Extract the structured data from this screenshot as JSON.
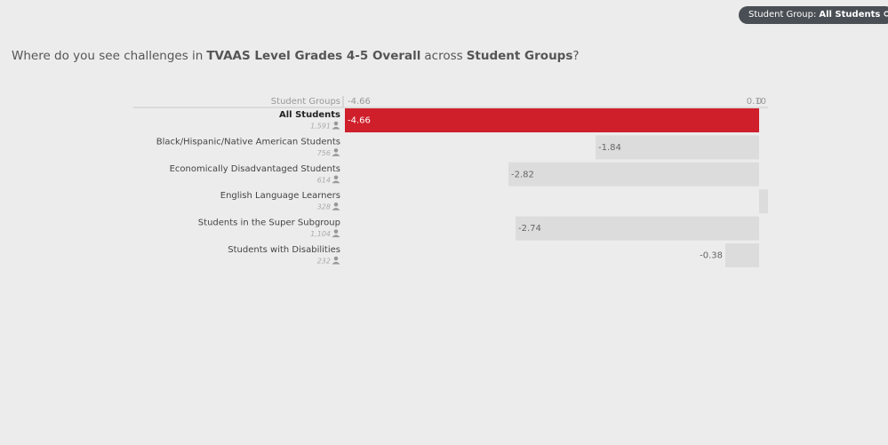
{
  "filter": {
    "label": "Student Group:",
    "value": "All Students"
  },
  "question": [
    {
      "text": "Where do you see challenges in",
      "bold": false
    },
    {
      "text": "TVAAS Level Grades 4-5 Overall",
      "bold": true
    },
    {
      "text": "across",
      "bold": false
    },
    {
      "text": "Student Groups",
      "bold": true
    },
    {
      "text": "?",
      "bold": false
    }
  ],
  "chart_data": {
    "type": "bar",
    "orientation": "horizontal",
    "category_axis_label": "Student Groups",
    "categories": [
      "All Students",
      "Black/Hispanic/Native American Students",
      "Economically Disadvantaged Students",
      "English Language Learners",
      "Students in the Super Subgroup",
      "Students with Disabilities"
    ],
    "counts": [
      "1,591",
      "756",
      "614",
      "328",
      "1,104",
      "232"
    ],
    "values": [
      -4.66,
      -1.84,
      -2.82,
      0.1,
      -2.74,
      -0.38
    ],
    "value_labels": [
      "-4.66",
      "-1.84",
      "-2.82",
      null,
      "-2.74",
      "-0.38"
    ],
    "color": "#dcdcdc",
    "highlight_color": "#cf1f2b",
    "highlighted": "All Students",
    "xlim": [
      -4.66,
      0.1
    ],
    "xticks": [
      -4.66,
      0,
      {
        "value": 0.1,
        "label": "0.10"
      }
    ]
  }
}
